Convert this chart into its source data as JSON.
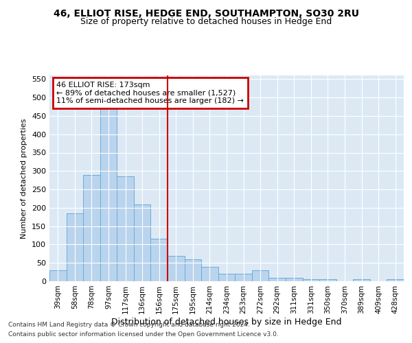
{
  "title": "46, ELLIOT RISE, HEDGE END, SOUTHAMPTON, SO30 2RU",
  "subtitle": "Size of property relative to detached houses in Hedge End",
  "xlabel": "Distribution of detached houses by size in Hedge End",
  "ylabel": "Number of detached properties",
  "categories": [
    "39sqm",
    "58sqm",
    "78sqm",
    "97sqm",
    "117sqm",
    "136sqm",
    "156sqm",
    "175sqm",
    "195sqm",
    "214sqm",
    "234sqm",
    "253sqm",
    "272sqm",
    "292sqm",
    "311sqm",
    "331sqm",
    "350sqm",
    "370sqm",
    "389sqm",
    "409sqm",
    "428sqm"
  ],
  "values": [
    30,
    185,
    290,
    470,
    285,
    210,
    115,
    70,
    60,
    40,
    20,
    20,
    30,
    10,
    10,
    5,
    5,
    0,
    5,
    0,
    5
  ],
  "bar_color": "#bad4ee",
  "bar_edge_color": "#6aaad4",
  "vline_x_index": 6.5,
  "vline_color": "#cc0000",
  "annotation_text": "46 ELLIOT RISE: 173sqm\n← 89% of detached houses are smaller (1,527)\n11% of semi-detached houses are larger (182) →",
  "annotation_box_color": "#cc0000",
  "background_color": "#dce9f5",
  "ylim": [
    0,
    560
  ],
  "yticks": [
    0,
    50,
    100,
    150,
    200,
    250,
    300,
    350,
    400,
    450,
    500,
    550
  ],
  "footer1": "Contains HM Land Registry data © Crown copyright and database right 2024.",
  "footer2": "Contains public sector information licensed under the Open Government Licence v3.0.",
  "title_fontsize": 10,
  "subtitle_fontsize": 9,
  "ylabel_fontsize": 8,
  "xlabel_fontsize": 9
}
